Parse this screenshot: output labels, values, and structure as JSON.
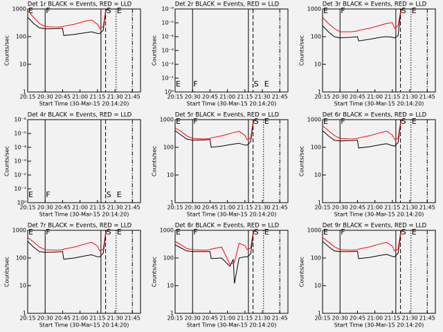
{
  "chart_data": [
    {
      "type": "line",
      "title": "Det 1r BLACK = Events, RED = LLD",
      "xlabel": "Start Time (30-Mar-15 20:14:20)",
      "ylabel": "Counts/sec",
      "log_y": true,
      "xlim": [
        "20:15",
        "21:52"
      ],
      "xticks": [
        "20:15",
        "20:30",
        "20:45",
        "21:00",
        "21:15",
        "21:30",
        "21:45"
      ],
      "ylim": [
        1,
        1000
      ],
      "yticks": [
        1,
        10,
        100,
        1000
      ],
      "x": [
        "20:15",
        "20:20",
        "20:25",
        "20:30",
        "20:40",
        "20:45",
        "20:46",
        "20:55",
        "21:05",
        "21:10",
        "21:15",
        "21:17",
        "21:20",
        "21:22",
        "21:23"
      ],
      "series": [
        {
          "color": "#000000",
          "values": [
            500,
            300,
            210,
            190,
            195,
            200,
            110,
            120,
            140,
            150,
            130,
            130,
            170,
            800,
            1000
          ]
        },
        {
          "color": "#ff0000",
          "values": [
            900,
            500,
            300,
            230,
            220,
            230,
            240,
            280,
            370,
            400,
            280,
            200,
            230,
            900,
            1000
          ]
        }
      ],
      "marker_label_position": "top",
      "markers": [
        {
          "x": "20:15",
          "style": "none",
          "label": "E"
        },
        {
          "x": "20:30",
          "style": "solid",
          "label": "F"
        },
        {
          "x": "21:18",
          "style": "solid"
        },
        {
          "x": "21:22",
          "style": "dashed",
          "label": "S"
        },
        {
          "x": "21:31",
          "style": "dotted",
          "label": "E"
        },
        {
          "x": "21:45",
          "style": "dashdot"
        }
      ]
    },
    {
      "type": "line",
      "title": "Det 2r BLACK = Events, RED = LLD",
      "xlabel": "Start Time (30-Mar-15 20:14:20)",
      "ylabel": "Counts/sec",
      "log_y": true,
      "xlim": [
        "20:15",
        "21:52"
      ],
      "xticks": [
        "20:15",
        "20:30",
        "20:45",
        "21:00",
        "21:15",
        "21:30",
        "21:45"
      ],
      "ylim": [
        1,
        1e-06
      ],
      "yticks": [
        {
          "value": 1e-06,
          "label": "10⁻⁶"
        },
        {
          "value": 1e-05,
          "label": "10⁻⁵"
        },
        {
          "value": 0.0001,
          "label": "10⁻⁴"
        },
        {
          "value": 0.001,
          "label": "10⁻³"
        },
        {
          "value": 0.01,
          "label": "10⁻²"
        },
        {
          "value": 0.1,
          "label": "10⁻¹"
        },
        {
          "value": 1,
          "label": "10⁰"
        }
      ],
      "x": [],
      "series": [],
      "marker_label_position": "bottom",
      "markers": [
        {
          "x": "20:15",
          "style": "none",
          "label": "E"
        },
        {
          "x": "20:30",
          "style": "solid",
          "label": "F"
        },
        {
          "x": "21:18",
          "style": "solid"
        },
        {
          "x": "21:22",
          "style": "dashed",
          "label": "S"
        },
        {
          "x": "21:31",
          "style": "none",
          "label": "E"
        },
        {
          "x": "21:45",
          "style": "dashdot"
        }
      ]
    },
    {
      "type": "line",
      "title": "Det 3r BLACK = Events, RED = LLD",
      "xlabel": "Start Time (30-Mar-15 20:14:20)",
      "ylabel": "Counts/sec",
      "log_y": true,
      "xlim": [
        "20:15",
        "21:52"
      ],
      "xticks": [
        "20:15",
        "20:30",
        "20:45",
        "21:00",
        "21:15",
        "21:30",
        "21:45"
      ],
      "ylim": [
        1,
        1000
      ],
      "yticks": [
        1,
        10,
        100,
        1000
      ],
      "x": [
        "20:15",
        "20:20",
        "20:25",
        "20:30",
        "20:40",
        "20:45",
        "20:46",
        "20:55",
        "21:05",
        "21:10",
        "21:15",
        "21:17",
        "21:20",
        "21:22",
        "21:23"
      ],
      "series": [
        {
          "color": "#000000",
          "values": [
            250,
            150,
            100,
            90,
            95,
            100,
            70,
            80,
            95,
            100,
            95,
            90,
            110,
            700,
            1000
          ]
        },
        {
          "color": "#ff0000",
          "values": [
            500,
            300,
            200,
            150,
            150,
            160,
            170,
            200,
            260,
            300,
            320,
            200,
            250,
            800,
            1000
          ]
        }
      ],
      "marker_label_position": "top",
      "markers": [
        {
          "x": "20:15",
          "style": "none",
          "label": "E"
        },
        {
          "x": "20:30",
          "style": "solid",
          "label": "F"
        },
        {
          "x": "21:18",
          "style": "solid"
        },
        {
          "x": "21:22",
          "style": "dashed",
          "label": "S"
        },
        {
          "x": "21:31",
          "style": "dotted",
          "label": "E"
        },
        {
          "x": "21:45",
          "style": "dashdot"
        }
      ]
    },
    {
      "type": "line",
      "title": "Det 4r BLACK = Events, RED = LLD",
      "xlabel": "Start Time (30-Mar-15 20:14:20)",
      "ylabel": "Counts/sec",
      "log_y": true,
      "xlim": [
        "20:15",
        "21:52"
      ],
      "xticks": [
        "20:15",
        "20:30",
        "20:45",
        "21:00",
        "21:15",
        "21:30",
        "21:45"
      ],
      "ylim": [
        1,
        1e-06
      ],
      "yticks": [
        {
          "value": 1e-06,
          "label": "10⁻⁶"
        },
        {
          "value": 1e-05,
          "label": "10⁻⁵"
        },
        {
          "value": 0.0001,
          "label": "10⁻⁴"
        },
        {
          "value": 0.001,
          "label": "10⁻³"
        },
        {
          "value": 0.01,
          "label": "10⁻²"
        },
        {
          "value": 0.1,
          "label": "10⁻¹"
        },
        {
          "value": 1,
          "label": "10⁰"
        }
      ],
      "x": [],
      "series": [],
      "marker_label_position": "bottom",
      "markers": [
        {
          "x": "20:15",
          "style": "none",
          "label": "E"
        },
        {
          "x": "20:30",
          "style": "solid",
          "label": "F"
        },
        {
          "x": "21:18",
          "style": "solid"
        },
        {
          "x": "21:22",
          "style": "dashed",
          "label": "S"
        },
        {
          "x": "21:31",
          "style": "none",
          "label": "E"
        },
        {
          "x": "21:45",
          "style": "dashdot"
        }
      ]
    },
    {
      "type": "line",
      "title": "Det 5r BLACK = Events, RED = LLD",
      "xlabel": "Start Time (30-Mar-15 20:14:20)",
      "ylabel": "Counts/sec",
      "log_y": true,
      "xlim": [
        "20:15",
        "21:52"
      ],
      "xticks": [
        "20:15",
        "20:30",
        "20:45",
        "21:00",
        "21:15",
        "21:30",
        "21:45"
      ],
      "ylim": [
        1,
        1000
      ],
      "yticks": [
        1,
        10,
        100,
        1000
      ],
      "x": [
        "20:15",
        "20:20",
        "20:25",
        "20:30",
        "20:40",
        "20:45",
        "20:46",
        "20:55",
        "21:05",
        "21:10",
        "21:15",
        "21:17",
        "21:20",
        "21:22",
        "21:23"
      ],
      "series": [
        {
          "color": "#000000",
          "values": [
            400,
            280,
            200,
            180,
            185,
            190,
            100,
            110,
            130,
            140,
            120,
            120,
            160,
            700,
            1000
          ]
        },
        {
          "color": "#ff0000",
          "values": [
            500,
            380,
            260,
            210,
            200,
            210,
            220,
            260,
            340,
            380,
            270,
            190,
            220,
            800,
            1000
          ]
        }
      ],
      "marker_label_position": "top",
      "markers": [
        {
          "x": "20:15",
          "style": "none",
          "label": "E"
        },
        {
          "x": "20:30",
          "style": "solid",
          "label": "F"
        },
        {
          "x": "21:18",
          "style": "solid"
        },
        {
          "x": "21:22",
          "style": "dashed",
          "label": "S"
        },
        {
          "x": "21:31",
          "style": "dotted",
          "label": "E"
        },
        {
          "x": "21:45",
          "style": "dashdot"
        }
      ]
    },
    {
      "type": "line",
      "title": "Det 6r BLACK = Events, RED = LLD",
      "xlabel": "Start Time (30-Mar-15 20:14:20)",
      "ylabel": "Counts/sec",
      "log_y": true,
      "xlim": [
        "20:15",
        "21:52"
      ],
      "xticks": [
        "20:15",
        "20:30",
        "20:45",
        "21:00",
        "21:15",
        "21:30",
        "21:45"
      ],
      "ylim": [
        1,
        1000
      ],
      "yticks": [
        1,
        10,
        100,
        1000
      ],
      "x": [
        "20:15",
        "20:20",
        "20:25",
        "20:30",
        "20:40",
        "20:45",
        "20:46",
        "20:55",
        "21:05",
        "21:10",
        "21:15",
        "21:17",
        "21:20",
        "21:22",
        "21:23"
      ],
      "series": [
        {
          "color": "#000000",
          "values": [
            400,
            260,
            180,
            170,
            175,
            180,
            95,
            105,
            125,
            135,
            115,
            110,
            150,
            700,
            1000
          ]
        },
        {
          "color": "#ff0000",
          "values": [
            600,
            400,
            270,
            210,
            200,
            210,
            220,
            260,
            340,
            380,
            280,
            190,
            210,
            800,
            1000
          ]
        }
      ],
      "marker_label_position": "top",
      "markers": [
        {
          "x": "20:15",
          "style": "none",
          "label": "E"
        },
        {
          "x": "20:30",
          "style": "solid",
          "label": "F"
        },
        {
          "x": "21:18",
          "style": "solid"
        },
        {
          "x": "21:22",
          "style": "dashed",
          "label": "S"
        },
        {
          "x": "21:31",
          "style": "dotted",
          "label": "E"
        },
        {
          "x": "21:45",
          "style": "dashdot"
        }
      ]
    },
    {
      "type": "line",
      "title": "Det 7r BLACK = Events, RED = LLD",
      "xlabel": "Start Time (30-Mar-15 20:14:20)",
      "ylabel": "Counts/sec",
      "log_y": true,
      "xlim": [
        "20:15",
        "21:52"
      ],
      "xticks": [
        "20:15",
        "20:30",
        "20:45",
        "21:00",
        "21:15",
        "21:30",
        "21:45"
      ],
      "ylim": [
        1,
        1000
      ],
      "yticks": [
        1,
        10,
        100,
        1000
      ],
      "x": [
        "20:15",
        "20:20",
        "20:25",
        "20:30",
        "20:40",
        "20:45",
        "20:46",
        "20:55",
        "21:05",
        "21:10",
        "21:15",
        "21:17",
        "21:20",
        "21:22",
        "21:23"
      ],
      "series": [
        {
          "color": "#000000",
          "values": [
            400,
            250,
            170,
            160,
            165,
            170,
            90,
            100,
            120,
            130,
            110,
            110,
            150,
            700,
            1000
          ]
        },
        {
          "color": "#ff0000",
          "values": [
            550,
            380,
            250,
            200,
            190,
            200,
            210,
            250,
            330,
            370,
            270,
            180,
            210,
            800,
            1000
          ]
        }
      ],
      "marker_label_position": "top",
      "markers": [
        {
          "x": "20:15",
          "style": "none",
          "label": "E"
        },
        {
          "x": "20:30",
          "style": "solid",
          "label": "F"
        },
        {
          "x": "21:18",
          "style": "solid"
        },
        {
          "x": "21:22",
          "style": "dashed",
          "label": "S"
        },
        {
          "x": "21:31",
          "style": "dotted",
          "label": "E"
        },
        {
          "x": "21:45",
          "style": "dashdot"
        }
      ]
    },
    {
      "type": "line",
      "title": "Det 8r BLACK = Events, RED = LLD",
      "xlabel": "Start Time (30-Mar-15 20:14:20)",
      "ylabel": "Counts/sec",
      "log_y": true,
      "xlim": [
        "20:15",
        "21:52"
      ],
      "xticks": [
        "20:15",
        "20:30",
        "20:45",
        "21:00",
        "21:15",
        "21:30",
        "21:45"
      ],
      "ylim": [
        1,
        1000
      ],
      "yticks": [
        1,
        10,
        100,
        1000
      ],
      "x": [
        "20:15",
        "20:20",
        "20:25",
        "20:30",
        "20:40",
        "20:45",
        "20:46",
        "20:55",
        "21:02",
        "21:05",
        "21:06",
        "21:10",
        "21:15",
        "21:17",
        "21:20",
        "21:22",
        "21:23"
      ],
      "series": [
        {
          "color": "#000000",
          "values": [
            300,
            230,
            180,
            170,
            170,
            170,
            95,
            100,
            50,
            90,
            12,
            100,
            110,
            110,
            140,
            700,
            1000
          ]
        },
        {
          "color": "#ff0000",
          "values": [
            400,
            300,
            220,
            200,
            190,
            200,
            210,
            250,
            60,
            65,
            70,
            340,
            280,
            200,
            230,
            800,
            1000
          ]
        }
      ],
      "marker_label_position": "top",
      "markers": [
        {
          "x": "20:15",
          "style": "none",
          "label": "E"
        },
        {
          "x": "20:30",
          "style": "solid",
          "label": "F"
        },
        {
          "x": "21:18",
          "style": "solid"
        },
        {
          "x": "21:22",
          "style": "dashed",
          "label": "S"
        },
        {
          "x": "21:31",
          "style": "dotted",
          "label": "E"
        },
        {
          "x": "21:45",
          "style": "dashdot"
        }
      ]
    },
    {
      "type": "line",
      "title": "Det 9r BLACK = Events, RED = LLD",
      "xlabel": "Start Time (30-Mar-15 20:14:20)",
      "ylabel": "Counts/sec",
      "log_y": true,
      "xlim": [
        "20:15",
        "21:52"
      ],
      "xticks": [
        "20:15",
        "20:30",
        "20:45",
        "21:00",
        "21:15",
        "21:30",
        "21:45"
      ],
      "ylim": [
        1,
        1000
      ],
      "yticks": [
        1,
        10,
        100,
        1000
      ],
      "x": [
        "20:15",
        "20:20",
        "20:25",
        "20:30",
        "20:40",
        "20:45",
        "20:46",
        "20:55",
        "21:05",
        "21:10",
        "21:15",
        "21:17",
        "21:20",
        "21:22",
        "21:23"
      ],
      "series": [
        {
          "color": "#000000",
          "values": [
            400,
            260,
            180,
            170,
            170,
            175,
            95,
            105,
            125,
            135,
            115,
            110,
            150,
            700,
            1000
          ]
        },
        {
          "color": "#ff0000",
          "values": [
            550,
            380,
            260,
            200,
            190,
            200,
            210,
            250,
            330,
            370,
            270,
            180,
            210,
            800,
            1000
          ]
        }
      ],
      "marker_label_position": "top",
      "markers": [
        {
          "x": "20:15",
          "style": "none",
          "label": "E"
        },
        {
          "x": "20:30",
          "style": "solid",
          "label": "F"
        },
        {
          "x": "21:18",
          "style": "solid"
        },
        {
          "x": "21:22",
          "style": "dashed",
          "label": "S"
        },
        {
          "x": "21:31",
          "style": "dotted",
          "label": "E"
        },
        {
          "x": "21:45",
          "style": "dashdot"
        }
      ]
    }
  ]
}
